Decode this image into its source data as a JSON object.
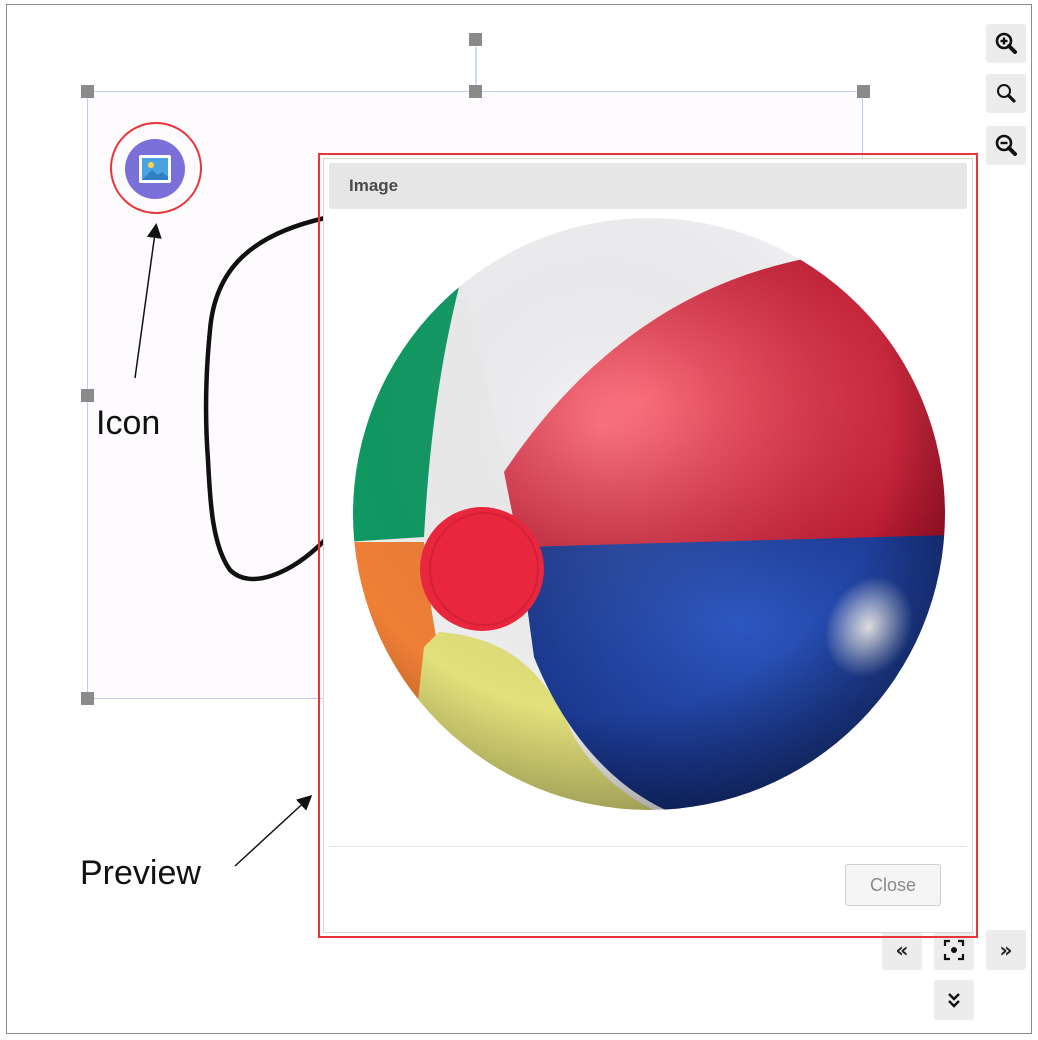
{
  "annotations": {
    "icon_label": "Icon",
    "preview_label": "Preview"
  },
  "dialog": {
    "title": "Image",
    "close_label": "Close",
    "image_subject": "beach-ball"
  },
  "toolbar": {
    "zoom_in_icon": "zoom-in-icon",
    "zoom_reset_icon": "zoom-reset-icon",
    "zoom_out_icon": "zoom-out-icon"
  },
  "navigation": {
    "previous_icon": "double-chevron-left-icon",
    "center_icon": "focus-center-icon",
    "next_icon": "double-chevron-right-icon",
    "down_icon": "double-chevron-down-icon"
  },
  "colors": {
    "highlight_red": "#e8343a",
    "icon_purple": "#7b6fd9",
    "selection_blue": "#bcd0ee",
    "handle_gray": "#8a8a8a"
  }
}
